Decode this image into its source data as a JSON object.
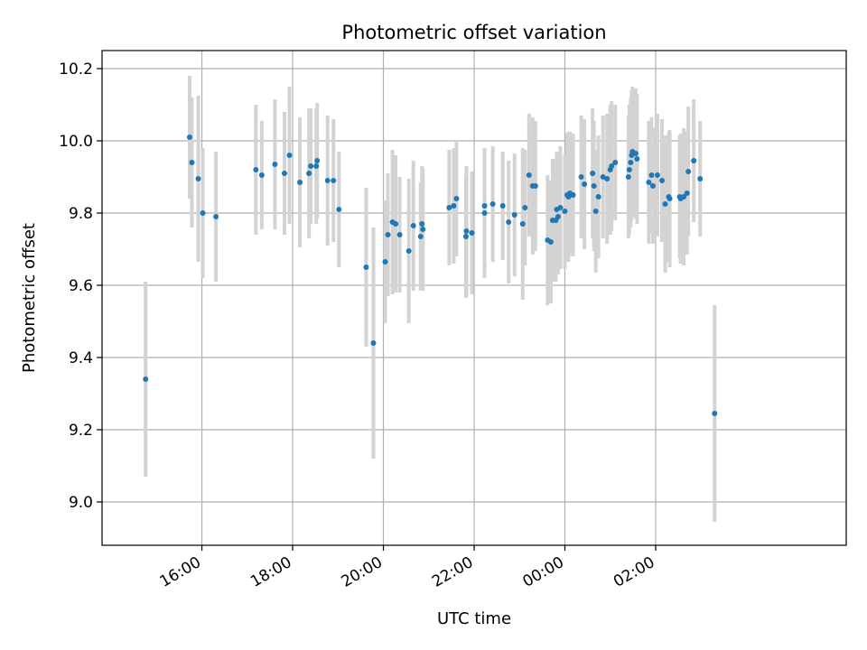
{
  "chart_data": {
    "type": "scatter",
    "title": "Photometric offset variation",
    "xlabel": "UTC time",
    "ylabel": "Photometric offset",
    "xlim_hours": [
      13.8,
      30.2
    ],
    "ylim": [
      8.88,
      10.25
    ],
    "x_ticks": [
      {
        "hours": 16,
        "label": "16:00"
      },
      {
        "hours": 18,
        "label": "18:00"
      },
      {
        "hours": 20,
        "label": "20:00"
      },
      {
        "hours": 22,
        "label": "22:00"
      },
      {
        "hours": 24,
        "label": "00:00"
      },
      {
        "hours": 26,
        "label": "02:00"
      }
    ],
    "y_ticks": [
      {
        "value": 9.0,
        "label": "9.0"
      },
      {
        "value": 9.2,
        "label": "9.2"
      },
      {
        "value": 9.4,
        "label": "9.4"
      },
      {
        "value": 9.6,
        "label": "9.6"
      },
      {
        "value": 9.8,
        "label": "9.8"
      },
      {
        "value": 10.0,
        "label": "10.0"
      },
      {
        "value": 10.2,
        "label": "10.2"
      }
    ],
    "grid": true,
    "colors": {
      "point": "#1f77b4",
      "errorbar": "#d3d3d3",
      "grid": "#b0b0b0"
    },
    "points": [
      [
        14.76,
        9.34,
        0.27
      ],
      [
        15.73,
        10.01,
        0.17
      ],
      [
        15.78,
        9.94,
        0.18
      ],
      [
        15.92,
        9.895,
        0.23
      ],
      [
        16.02,
        9.8,
        0.18
      ],
      [
        16.31,
        9.79,
        0.18
      ],
      [
        17.19,
        9.92,
        0.18
      ],
      [
        17.32,
        9.905,
        0.15
      ],
      [
        17.61,
        9.935,
        0.18
      ],
      [
        17.82,
        9.91,
        0.17
      ],
      [
        17.93,
        9.96,
        0.19
      ],
      [
        18.16,
        9.885,
        0.18
      ],
      [
        18.36,
        9.91,
        0.18
      ],
      [
        18.4,
        9.93,
        0.16
      ],
      [
        18.52,
        9.93,
        0.16
      ],
      [
        18.54,
        9.945,
        0.16
      ],
      [
        18.77,
        9.89,
        0.18
      ],
      [
        18.9,
        9.89,
        0.17
      ],
      [
        19.02,
        9.81,
        0.16
      ],
      [
        19.62,
        9.65,
        0.22
      ],
      [
        19.78,
        9.44,
        0.32
      ],
      [
        20.04,
        9.665,
        0.17
      ],
      [
        20.1,
        9.74,
        0.17
      ],
      [
        20.2,
        9.775,
        0.2
      ],
      [
        20.27,
        9.77,
        0.19
      ],
      [
        20.36,
        9.74,
        0.16
      ],
      [
        20.56,
        9.695,
        0.2
      ],
      [
        20.66,
        9.765,
        0.18
      ],
      [
        20.82,
        9.735,
        0.15
      ],
      [
        20.85,
        9.77,
        0.16
      ],
      [
        20.87,
        9.755,
        0.17
      ],
      [
        21.45,
        9.815,
        0.16
      ],
      [
        21.55,
        9.82,
        0.16
      ],
      [
        21.61,
        9.84,
        0.16
      ],
      [
        21.82,
        9.735,
        0.17
      ],
      [
        21.83,
        9.75,
        0.18
      ],
      [
        21.95,
        9.745,
        0.17
      ],
      [
        22.23,
        9.8,
        0.18
      ],
      [
        22.23,
        9.82,
        0.16
      ],
      [
        22.41,
        9.825,
        0.16
      ],
      [
        22.63,
        9.82,
        0.15
      ],
      [
        22.76,
        9.775,
        0.17
      ],
      [
        22.89,
        9.795,
        0.17
      ],
      [
        23.07,
        9.77,
        0.21
      ],
      [
        23.12,
        9.815,
        0.16
      ],
      [
        23.21,
        9.905,
        0.17
      ],
      [
        23.29,
        9.875,
        0.19
      ],
      [
        23.35,
        9.875,
        0.18
      ],
      [
        23.62,
        9.725,
        0.18
      ],
      [
        23.69,
        9.72,
        0.17
      ],
      [
        23.73,
        9.78,
        0.17
      ],
      [
        23.8,
        9.78,
        0.17
      ],
      [
        23.82,
        9.81,
        0.16
      ],
      [
        23.85,
        9.79,
        0.16
      ],
      [
        23.9,
        9.815,
        0.17
      ],
      [
        24.0,
        9.805,
        0.16
      ],
      [
        24.05,
        9.85,
        0.17
      ],
      [
        24.08,
        9.845,
        0.18
      ],
      [
        24.11,
        9.855,
        0.17
      ],
      [
        24.18,
        9.85,
        0.17
      ],
      [
        24.36,
        9.9,
        0.17
      ],
      [
        24.43,
        9.88,
        0.18
      ],
      [
        24.61,
        9.91,
        0.18
      ],
      [
        24.64,
        9.875,
        0.18
      ],
      [
        24.68,
        9.805,
        0.17
      ],
      [
        24.74,
        9.845,
        0.17
      ],
      [
        24.84,
        9.9,
        0.17
      ],
      [
        24.93,
        9.895,
        0.18
      ],
      [
        25.0,
        9.92,
        0.18
      ],
      [
        25.03,
        9.93,
        0.18
      ],
      [
        25.11,
        9.94,
        0.16
      ],
      [
        25.4,
        9.9,
        0.17
      ],
      [
        25.42,
        9.92,
        0.18
      ],
      [
        25.45,
        9.94,
        0.18
      ],
      [
        25.47,
        9.96,
        0.18
      ],
      [
        25.49,
        9.97,
        0.18
      ],
      [
        25.56,
        9.965,
        0.18
      ],
      [
        25.59,
        9.95,
        0.18
      ],
      [
        25.85,
        9.885,
        0.17
      ],
      [
        25.91,
        9.905,
        0.16
      ],
      [
        25.94,
        9.875,
        0.16
      ],
      [
        26.04,
        9.905,
        0.17
      ],
      [
        26.14,
        9.89,
        0.17
      ],
      [
        26.21,
        9.825,
        0.19
      ],
      [
        26.29,
        9.845,
        0.18
      ],
      [
        26.31,
        9.84,
        0.19
      ],
      [
        26.53,
        9.845,
        0.17
      ],
      [
        26.55,
        9.84,
        0.18
      ],
      [
        26.62,
        9.845,
        0.19
      ],
      [
        26.69,
        9.855,
        0.17
      ],
      [
        26.72,
        9.915,
        0.18
      ],
      [
        26.84,
        9.945,
        0.17
      ],
      [
        26.98,
        9.895,
        0.16
      ],
      [
        27.3,
        9.245,
        0.3
      ]
    ]
  }
}
